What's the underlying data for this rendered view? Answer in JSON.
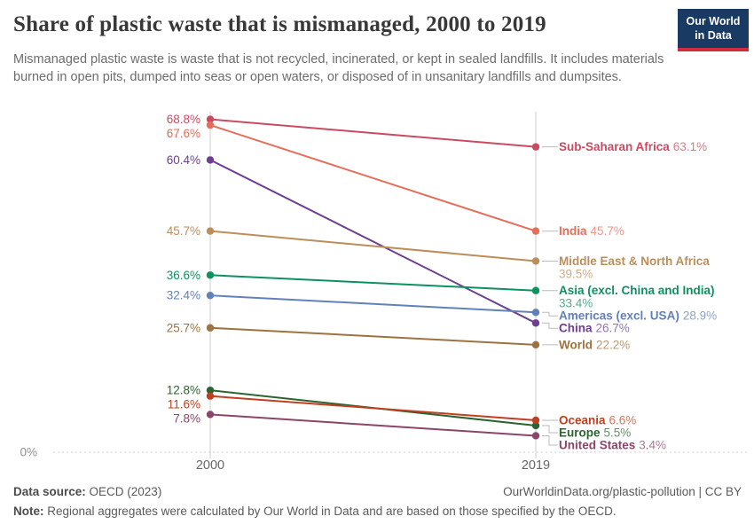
{
  "header": {
    "title": "Share of plastic waste that is mismanaged, 2000 to 2019",
    "subtitle": "Mismanaged plastic waste is waste that is not recycled, incinerated, or kept in sealed landfills. It includes materials burned in open pits, dumped into seas or open waters, or disposed of in unsanitary landfills and dumpsites.",
    "logo": {
      "line1": "Our World",
      "line2": "in Data",
      "bg_color": "#193a63",
      "accent_color": "#cf2d3f"
    }
  },
  "chart_data": {
    "type": "line",
    "variant": "slope",
    "x": [
      2000,
      2019
    ],
    "x_tick_labels": [
      "2000",
      "2019"
    ],
    "ylim": [
      0,
      70
    ],
    "zero_label": "0%",
    "value_suffix": "%",
    "grid": false,
    "legend_position": "right-labels",
    "axis_color": "#cccccc",
    "tick_label_color": "#666666",
    "zero_label_color": "#8f8f8f",
    "connector_color": "#bbbbbb",
    "series": [
      {
        "name": "Sub-Saharan Africa",
        "values": [
          68.8,
          63.1
        ],
        "color": "#ca4b61"
      },
      {
        "name": "India",
        "values": [
          67.6,
          45.7
        ],
        "color": "#e56e5a"
      },
      {
        "name": "China",
        "values": [
          60.4,
          26.7
        ],
        "color": "#6d3e91"
      },
      {
        "name": "Middle East & North Africa",
        "values": [
          45.7,
          39.5
        ],
        "color": "#bc8e5a"
      },
      {
        "name": "Asia (excl. China and India)",
        "values": [
          36.6,
          33.4
        ],
        "color": "#0d9160"
      },
      {
        "name": "Americas (excl. USA)",
        "values": [
          32.4,
          28.9
        ],
        "color": "#6181bb"
      },
      {
        "name": "World",
        "values": [
          25.7,
          22.2
        ],
        "color": "#9d7340"
      },
      {
        "name": "Europe",
        "values": [
          12.8,
          5.5
        ],
        "color": "#2c6330"
      },
      {
        "name": "Oceania",
        "values": [
          11.6,
          6.6
        ],
        "color": "#c23e1f"
      },
      {
        "name": "United States",
        "values": [
          7.8,
          3.4
        ],
        "color": "#8c4569"
      }
    ]
  },
  "footer": {
    "source_label": "Data source:",
    "source_value": " OECD (2023)",
    "link": "OurWorldinData.org/plastic-pollution | CC BY",
    "note_label": "Note:",
    "note_value": " Regional aggregates were calculated by Our World in Data and are based on those specified by the OECD."
  }
}
